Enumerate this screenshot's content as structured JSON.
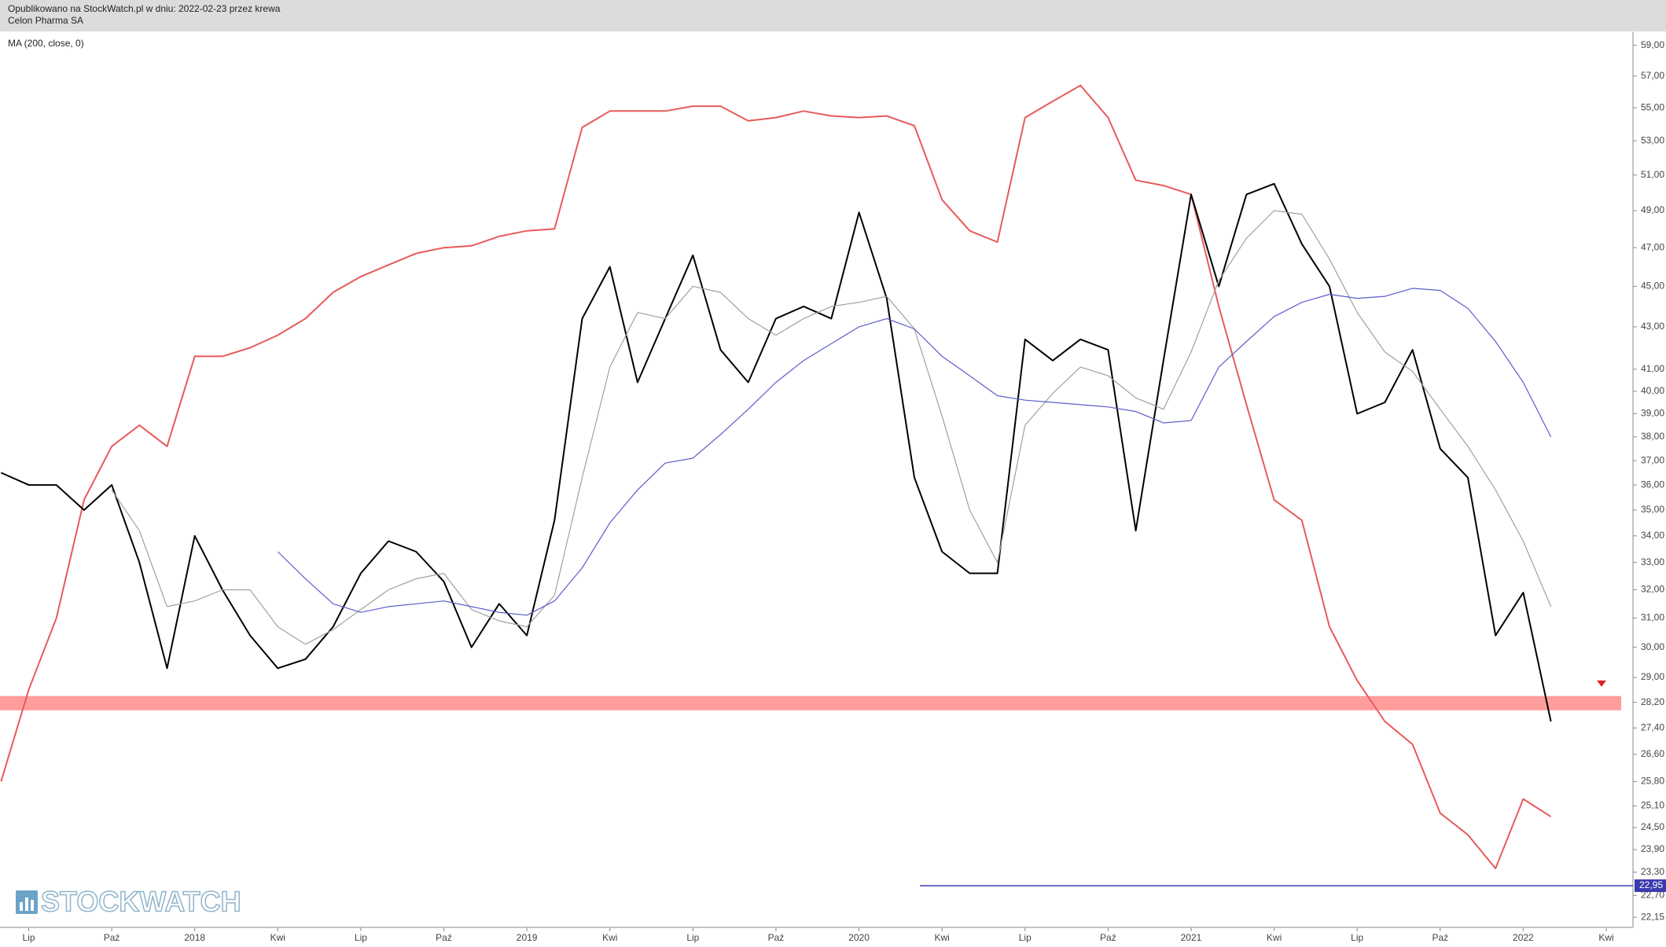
{
  "header": {
    "publication": "Opublikowano na StockWatch.pl w dniu: 2022-02-23 przez krewa",
    "instrument": "Celon Pharma SA"
  },
  "watermark": "STOCKWATCH",
  "chart_data": {
    "type": "line",
    "log_scale": true,
    "grid": false,
    "categories": [
      null,
      "Lip",
      null,
      null,
      "Paź",
      null,
      null,
      "2018",
      null,
      null,
      "Kwi",
      null,
      null,
      "Lip",
      null,
      null,
      "Paź",
      null,
      null,
      "2019",
      null,
      null,
      "Kwi",
      null,
      null,
      "Lip",
      null,
      null,
      "Paź",
      null,
      null,
      "2020",
      null,
      null,
      "Kwi",
      null,
      null,
      "Lip",
      null,
      null,
      "Paź",
      null,
      null,
      "2021",
      null,
      null,
      "Kwi",
      null,
      null,
      "Lip",
      null,
      null,
      "Paź",
      null,
      null,
      "2022",
      null,
      null,
      "Kwi"
    ],
    "series": [
      {
        "color": "#e85a5a",
        "values": [
          25.8,
          28.6,
          31.0,
          35.4,
          37.6,
          38.5,
          37.6,
          41.6,
          41.6,
          42.0,
          42.6,
          43.4,
          44.7,
          45.5,
          46.1,
          46.7,
          47.0,
          47.1,
          47.6,
          47.9,
          48.0,
          53.8,
          54.8,
          54.8,
          54.8,
          55.1,
          55.1,
          54.2,
          54.4,
          54.8,
          54.5,
          54.4,
          54.5,
          53.9,
          49.6,
          47.9,
          47.3,
          54.4,
          55.4,
          56.4,
          54.4,
          50.7,
          50.4,
          49.9,
          44.0,
          39.4,
          35.4,
          34.6,
          30.7,
          28.9,
          27.6,
          26.9,
          24.9,
          24.3,
          23.4,
          25.3,
          24.8,
          null,
          null
        ]
      },
      {
        "color": "#000000",
        "values": [
          36.5,
          36.0,
          36.0,
          35.0,
          36.0,
          33.0,
          29.3,
          34.0,
          32.0,
          30.4,
          29.3,
          29.6,
          30.7,
          32.6,
          33.8,
          33.4,
          32.3,
          30.0,
          31.5,
          30.4,
          34.6,
          43.4,
          46.0,
          40.4,
          43.4,
          46.6,
          41.9,
          40.4,
          43.4,
          44.0,
          43.4,
          48.9,
          44.4,
          36.3,
          33.4,
          32.6,
          32.6,
          42.4,
          41.4,
          42.4,
          41.9,
          34.2,
          41.4,
          49.9,
          45.0,
          49.9,
          50.5,
          47.2,
          45.0,
          39.0,
          39.5,
          41.9,
          37.5,
          36.3,
          30.4,
          31.9,
          27.6,
          null,
          null
        ]
      },
      {
        "color": "#a0a0a0",
        "values": [
          null,
          null,
          null,
          null,
          35.8,
          34.2,
          31.4,
          31.6,
          32.0,
          32.0,
          30.7,
          30.1,
          30.6,
          31.3,
          32.0,
          32.4,
          32.6,
          31.3,
          30.9,
          30.7,
          31.8,
          36.3,
          41.1,
          43.7,
          43.4,
          45.0,
          44.7,
          43.4,
          42.6,
          43.4,
          44.0,
          44.2,
          44.5,
          42.9,
          38.9,
          35.0,
          33.0,
          38.5,
          39.9,
          41.1,
          40.7,
          39.7,
          39.2,
          41.8,
          45.3,
          47.5,
          49.0,
          48.8,
          46.4,
          43.7,
          41.8,
          40.9,
          39.2,
          37.6,
          35.8,
          33.8,
          31.4,
          null,
          null
        ]
      },
      {
        "name": "MA (200, close, 0)",
        "color": "#5c5ccc",
        "values": [
          null,
          null,
          null,
          null,
          null,
          null,
          null,
          null,
          null,
          null,
          33.4,
          32.4,
          31.5,
          31.2,
          31.4,
          31.5,
          31.6,
          31.4,
          31.2,
          31.1,
          31.6,
          32.8,
          34.5,
          35.8,
          36.9,
          37.1,
          38.1,
          39.2,
          40.4,
          41.4,
          42.2,
          43.0,
          43.4,
          42.9,
          41.6,
          40.7,
          39.8,
          39.6,
          39.5,
          39.4,
          39.3,
          39.1,
          38.6,
          38.7,
          41.1,
          42.3,
          43.5,
          44.2,
          44.6,
          44.4,
          44.5,
          44.9,
          44.8,
          43.9,
          42.3,
          40.4,
          38.0,
          null,
          null
        ]
      }
    ],
    "support_zone": {
      "color": "#ff9c9c",
      "range": [
        27.95,
        28.4
      ]
    },
    "low_line": {
      "value": 22.95,
      "label": "22,95",
      "color": "#3b3bb0"
    },
    "alert": {
      "value": 28.8,
      "color": "#e02020"
    },
    "ylim": [
      21.9,
      59.9
    ],
    "yticks": [
      {
        "value": 59,
        "label": "59,00"
      },
      {
        "value": 57,
        "label": "57,00"
      },
      {
        "value": 55,
        "label": "55,00"
      },
      {
        "value": 53,
        "label": "53,00"
      },
      {
        "value": 51,
        "label": "51,00"
      },
      {
        "value": 49,
        "label": "49,00"
      },
      {
        "value": 47,
        "label": "47,00"
      },
      {
        "value": 45,
        "label": "45,00"
      },
      {
        "value": 43,
        "label": "43,00"
      },
      {
        "value": 41,
        "label": "41,00"
      },
      {
        "value": 40,
        "label": "40,00"
      },
      {
        "value": 39,
        "label": "39,00"
      },
      {
        "value": 38,
        "label": "38,00"
      },
      {
        "value": 37,
        "label": "37,00"
      },
      {
        "value": 36,
        "label": "36,00"
      },
      {
        "value": 35,
        "label": "35,00"
      },
      {
        "value": 34,
        "label": "34,00"
      },
      {
        "value": 33,
        "label": "33,00"
      },
      {
        "value": 32,
        "label": "32,00"
      },
      {
        "value": 31,
        "label": "31,00"
      },
      {
        "value": 30,
        "label": "30,00"
      },
      {
        "value": 29,
        "label": "29,00"
      },
      {
        "value": 28.2,
        "label": "28,20"
      },
      {
        "value": 27.4,
        "label": "27,40"
      },
      {
        "value": 26.6,
        "label": "26,60"
      },
      {
        "value": 25.8,
        "label": "25,80"
      },
      {
        "value": 25.1,
        "label": "25,10"
      },
      {
        "value": 24.5,
        "label": "24,50"
      },
      {
        "value": 23.9,
        "label": "23,90"
      },
      {
        "value": 23.3,
        "label": "23,30"
      },
      {
        "value": 22.7,
        "label": "22,70"
      },
      {
        "value": 22.15,
        "label": "22,15"
      }
    ]
  }
}
